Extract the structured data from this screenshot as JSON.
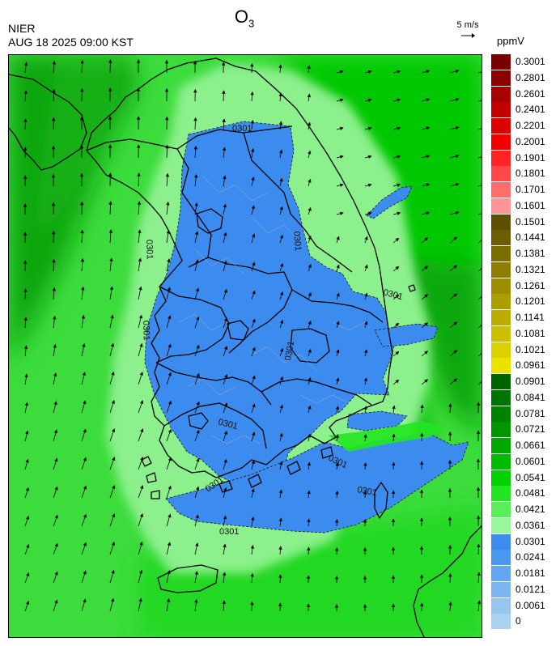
{
  "header": {
    "species": "O",
    "species_sub": "3",
    "agency": "NIER",
    "datetime": "AUG 18 2025 09:00 KST",
    "wind_ref_label": "5 m/s",
    "unit": "ppmV"
  },
  "map": {
    "contour_labels": [
      "0301",
      "0301",
      "0301",
      "0301",
      "0301",
      "0301",
      "0301",
      "0301",
      "0301",
      "0301",
      "0301"
    ],
    "colors": {
      "ocean_dark": "#0fa50f",
      "sea_green": "#00c800",
      "land_green": "#3cdc3c",
      "bright_green": "#22e622",
      "light_green": "#8cf08c",
      "blue": "#3c8cf0",
      "light_blue": "#78aaf0"
    }
  },
  "legend": {
    "zero_label": "0",
    "bins": [
      {
        "label": "0.3001",
        "color": "#7a0000"
      },
      {
        "label": "0.2801",
        "color": "#8e0000"
      },
      {
        "label": "0.2601",
        "color": "#a80000"
      },
      {
        "label": "0.2401",
        "color": "#c20000"
      },
      {
        "label": "0.2201",
        "color": "#dc0000"
      },
      {
        "label": "0.2001",
        "color": "#f20000"
      },
      {
        "label": "0.1901",
        "color": "#ff2424"
      },
      {
        "label": "0.1801",
        "color": "#ff4848"
      },
      {
        "label": "0.1701",
        "color": "#ff6c6c"
      },
      {
        "label": "0.1601",
        "color": "#ff9494"
      },
      {
        "label": "0.1501",
        "color": "#5e4e00"
      },
      {
        "label": "0.1441",
        "color": "#6c5e00"
      },
      {
        "label": "0.1381",
        "color": "#7c6e00"
      },
      {
        "label": "0.1321",
        "color": "#8c7e00"
      },
      {
        "label": "0.1261",
        "color": "#9c8e00"
      },
      {
        "label": "0.1201",
        "color": "#ac9e00"
      },
      {
        "label": "0.1141",
        "color": "#bcae00"
      },
      {
        "label": "0.1081",
        "color": "#ccbe00"
      },
      {
        "label": "0.1021",
        "color": "#dcd000"
      },
      {
        "label": "0.0961",
        "color": "#ece200"
      },
      {
        "label": "0.0901",
        "color": "#006400"
      },
      {
        "label": "0.0841",
        "color": "#007400"
      },
      {
        "label": "0.0781",
        "color": "#008200"
      },
      {
        "label": "0.0721",
        "color": "#009600"
      },
      {
        "label": "0.0661",
        "color": "#00a800"
      },
      {
        "label": "0.0601",
        "color": "#00bc00"
      },
      {
        "label": "0.0541",
        "color": "#00d200"
      },
      {
        "label": "0.0481",
        "color": "#22e622"
      },
      {
        "label": "0.0421",
        "color": "#5aee5a"
      },
      {
        "label": "0.0361",
        "color": "#9af69a"
      },
      {
        "label": "0.0301",
        "color": "#3c8cf0"
      },
      {
        "label": "0.0241",
        "color": "#4c98f0"
      },
      {
        "label": "0.0181",
        "color": "#64a6f0"
      },
      {
        "label": "0.0121",
        "color": "#7cb4f0"
      },
      {
        "label": "0.0061",
        "color": "#96c6f0"
      },
      {
        "label": "",
        "color": "#aad2f0"
      }
    ]
  }
}
